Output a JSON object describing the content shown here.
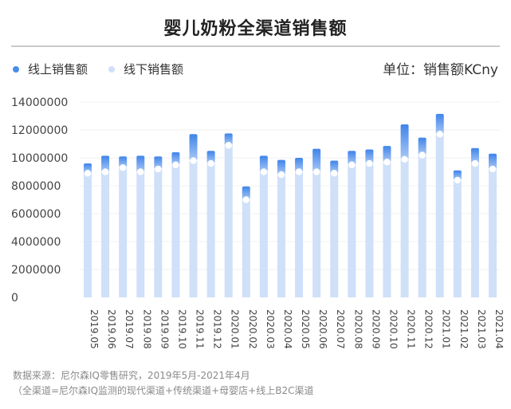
{
  "chart_data": {
    "type": "bar",
    "title": "婴儿奶粉全渠道销售额",
    "unit_label": "单位：销售额KCny",
    "categories": [
      "2019.05",
      "2019.06",
      "2019.07",
      "2019.08",
      "2019.09",
      "2019.10",
      "2019.11",
      "2019.12",
      "2020.01",
      "2020.02",
      "2020.03",
      "2020.04",
      "2020.05",
      "2020.06",
      "2020.07",
      "2020.08",
      "2020.09",
      "2020.10",
      "2020.11",
      "2020.12",
      "2021.01",
      "2021.02",
      "2021.03",
      "2021.04"
    ],
    "series": [
      {
        "name": "线上销售额",
        "color": "#4a8bea",
        "values": [
          700000,
          1150000,
          800000,
          1150000,
          900000,
          900000,
          1900000,
          900000,
          850000,
          950000,
          1150000,
          1050000,
          1000000,
          1650000,
          900000,
          1000000,
          1000000,
          1150000,
          2500000,
          1250000,
          1450000,
          700000,
          1100000,
          1100000
        ]
      },
      {
        "name": "线下销售额",
        "color": "#cfe0f8",
        "values": [
          8900000,
          9000000,
          9300000,
          9000000,
          9200000,
          9500000,
          9800000,
          9600000,
          10900000,
          7000000,
          9000000,
          8800000,
          9000000,
          9000000,
          8900000,
          9500000,
          9600000,
          9700000,
          9900000,
          10200000,
          11700000,
          8400000,
          9600000,
          9200000
        ]
      }
    ],
    "ylim": [
      0,
      14000000
    ],
    "yticks": [
      0,
      2000000,
      4000000,
      6000000,
      8000000,
      10000000,
      12000000,
      14000000
    ],
    "ytick_labels": [
      "0",
      "2000000",
      "4000000",
      "6000000",
      "8000000",
      "10000000",
      "12000000",
      "14000000"
    ],
    "grid": true,
    "legend": "top-left"
  },
  "footnote": {
    "line1": "数据来源：尼尔森IQ零售研究，2019年5月-2021年4月",
    "line2": "（全渠道=尼尔森IQ监测的现代渠道+传统渠道+母婴店+线上B2C渠道"
  }
}
